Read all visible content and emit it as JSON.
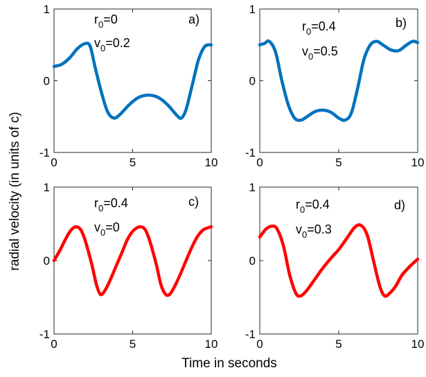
{
  "figure": {
    "ylabel": "radial velocity (in units of c)",
    "xlabel": "Time in seconds"
  },
  "chart_data": [
    {
      "type": "line",
      "panel_label": "a)",
      "annotations": [
        {
          "base": "r",
          "sub": "0",
          "rest": "=0"
        },
        {
          "base": "v",
          "sub": "0",
          "rest": "=0.2"
        }
      ],
      "xlim": [
        0,
        10
      ],
      "ylim": [
        -1,
        1
      ],
      "xticks": [
        "0",
        "5",
        "10"
      ],
      "yticks": [
        "-1",
        "0",
        "1"
      ],
      "color": "#0072BD",
      "series": [
        {
          "x": [
            0,
            0.5,
            1.0,
            1.5,
            2.0,
            2.3,
            2.6,
            3.0,
            3.4,
            3.8,
            4.2,
            4.8,
            5.4,
            6.0,
            6.6,
            7.2,
            7.8,
            8.1,
            8.4,
            8.8,
            9.2,
            9.6,
            10
          ],
          "y": [
            0.2,
            0.23,
            0.32,
            0.45,
            0.52,
            0.48,
            0.2,
            -0.15,
            -0.43,
            -0.52,
            -0.47,
            -0.33,
            -0.23,
            -0.2,
            -0.23,
            -0.33,
            -0.48,
            -0.52,
            -0.4,
            -0.05,
            0.3,
            0.48,
            0.5
          ]
        }
      ]
    },
    {
      "type": "line",
      "panel_label": "b)",
      "annotations": [
        {
          "base": "r",
          "sub": "0",
          "rest": "=0.4"
        },
        {
          "base": "v",
          "sub": "0",
          "rest": "=0.5"
        }
      ],
      "xlim": [
        0,
        10
      ],
      "ylim": [
        -1,
        1
      ],
      "xticks": [
        "0",
        "5",
        "10"
      ],
      "yticks": [
        "-1",
        "0",
        "1"
      ],
      "color": "#0072BD",
      "series": [
        {
          "x": [
            0,
            0.3,
            0.6,
            1.0,
            1.4,
            1.8,
            2.2,
            2.6,
            3.0,
            3.5,
            4.0,
            4.5,
            5.0,
            5.4,
            5.8,
            6.2,
            6.6,
            7.0,
            7.4,
            7.8,
            8.3,
            8.8,
            9.3,
            9.7,
            10
          ],
          "y": [
            0.5,
            0.52,
            0.55,
            0.4,
            0.0,
            -0.33,
            -0.52,
            -0.55,
            -0.5,
            -0.43,
            -0.41,
            -0.44,
            -0.52,
            -0.55,
            -0.45,
            -0.1,
            0.3,
            0.5,
            0.55,
            0.5,
            0.43,
            0.42,
            0.5,
            0.55,
            0.53
          ]
        }
      ]
    },
    {
      "type": "line",
      "panel_label": "c)",
      "annotations": [
        {
          "base": "r",
          "sub": "0",
          "rest": "=0.4"
        },
        {
          "base": "v",
          "sub": "0",
          "rest": "=0"
        }
      ],
      "xlim": [
        0,
        10
      ],
      "ylim": [
        -1,
        1
      ],
      "xticks": [
        "0",
        "5",
        "10"
      ],
      "yticks": [
        "-1",
        "0",
        "1"
      ],
      "color": "#FF0000",
      "series": [
        {
          "x": [
            0,
            0.4,
            0.8,
            1.1,
            1.4,
            1.7,
            2.0,
            2.4,
            2.7,
            2.95,
            3.2,
            3.5,
            3.9,
            4.3,
            4.7,
            5.1,
            5.5,
            5.8,
            6.1,
            6.5,
            6.8,
            7.1,
            7.35,
            7.6,
            7.9,
            8.3,
            8.7,
            9.1,
            9.5,
            10
          ],
          "y": [
            0.0,
            0.15,
            0.32,
            0.42,
            0.46,
            0.42,
            0.26,
            -0.05,
            -0.33,
            -0.46,
            -0.42,
            -0.3,
            -0.1,
            0.1,
            0.3,
            0.42,
            0.46,
            0.42,
            0.26,
            -0.05,
            -0.33,
            -0.46,
            -0.46,
            -0.38,
            -0.25,
            -0.05,
            0.15,
            0.32,
            0.42,
            0.46
          ]
        }
      ]
    },
    {
      "type": "line",
      "panel_label": "d)",
      "annotations": [
        {
          "base": "r",
          "sub": "0",
          "rest": "=0.4"
        },
        {
          "base": "v",
          "sub": "0",
          "rest": "=0.3"
        }
      ],
      "xlim": [
        0,
        10
      ],
      "ylim": [
        -1,
        1
      ],
      "xticks": [
        "0",
        "5",
        "10"
      ],
      "yticks": [
        "-1",
        "0",
        "1"
      ],
      "color": "#FF0000",
      "series": [
        {
          "x": [
            0,
            0.4,
            0.8,
            1.1,
            1.5,
            1.9,
            2.3,
            2.6,
            3.0,
            3.5,
            4.0,
            4.5,
            5.0,
            5.5,
            6.0,
            6.4,
            6.8,
            7.2,
            7.6,
            7.9,
            8.2,
            8.6,
            9.0,
            9.5,
            10
          ],
          "y": [
            0.32,
            0.43,
            0.47,
            0.43,
            0.2,
            -0.2,
            -0.45,
            -0.48,
            -0.4,
            -0.25,
            -0.1,
            0.03,
            0.15,
            0.3,
            0.45,
            0.48,
            0.35,
            0.0,
            -0.35,
            -0.48,
            -0.45,
            -0.35,
            -0.2,
            -0.08,
            0.02
          ]
        }
      ]
    }
  ]
}
